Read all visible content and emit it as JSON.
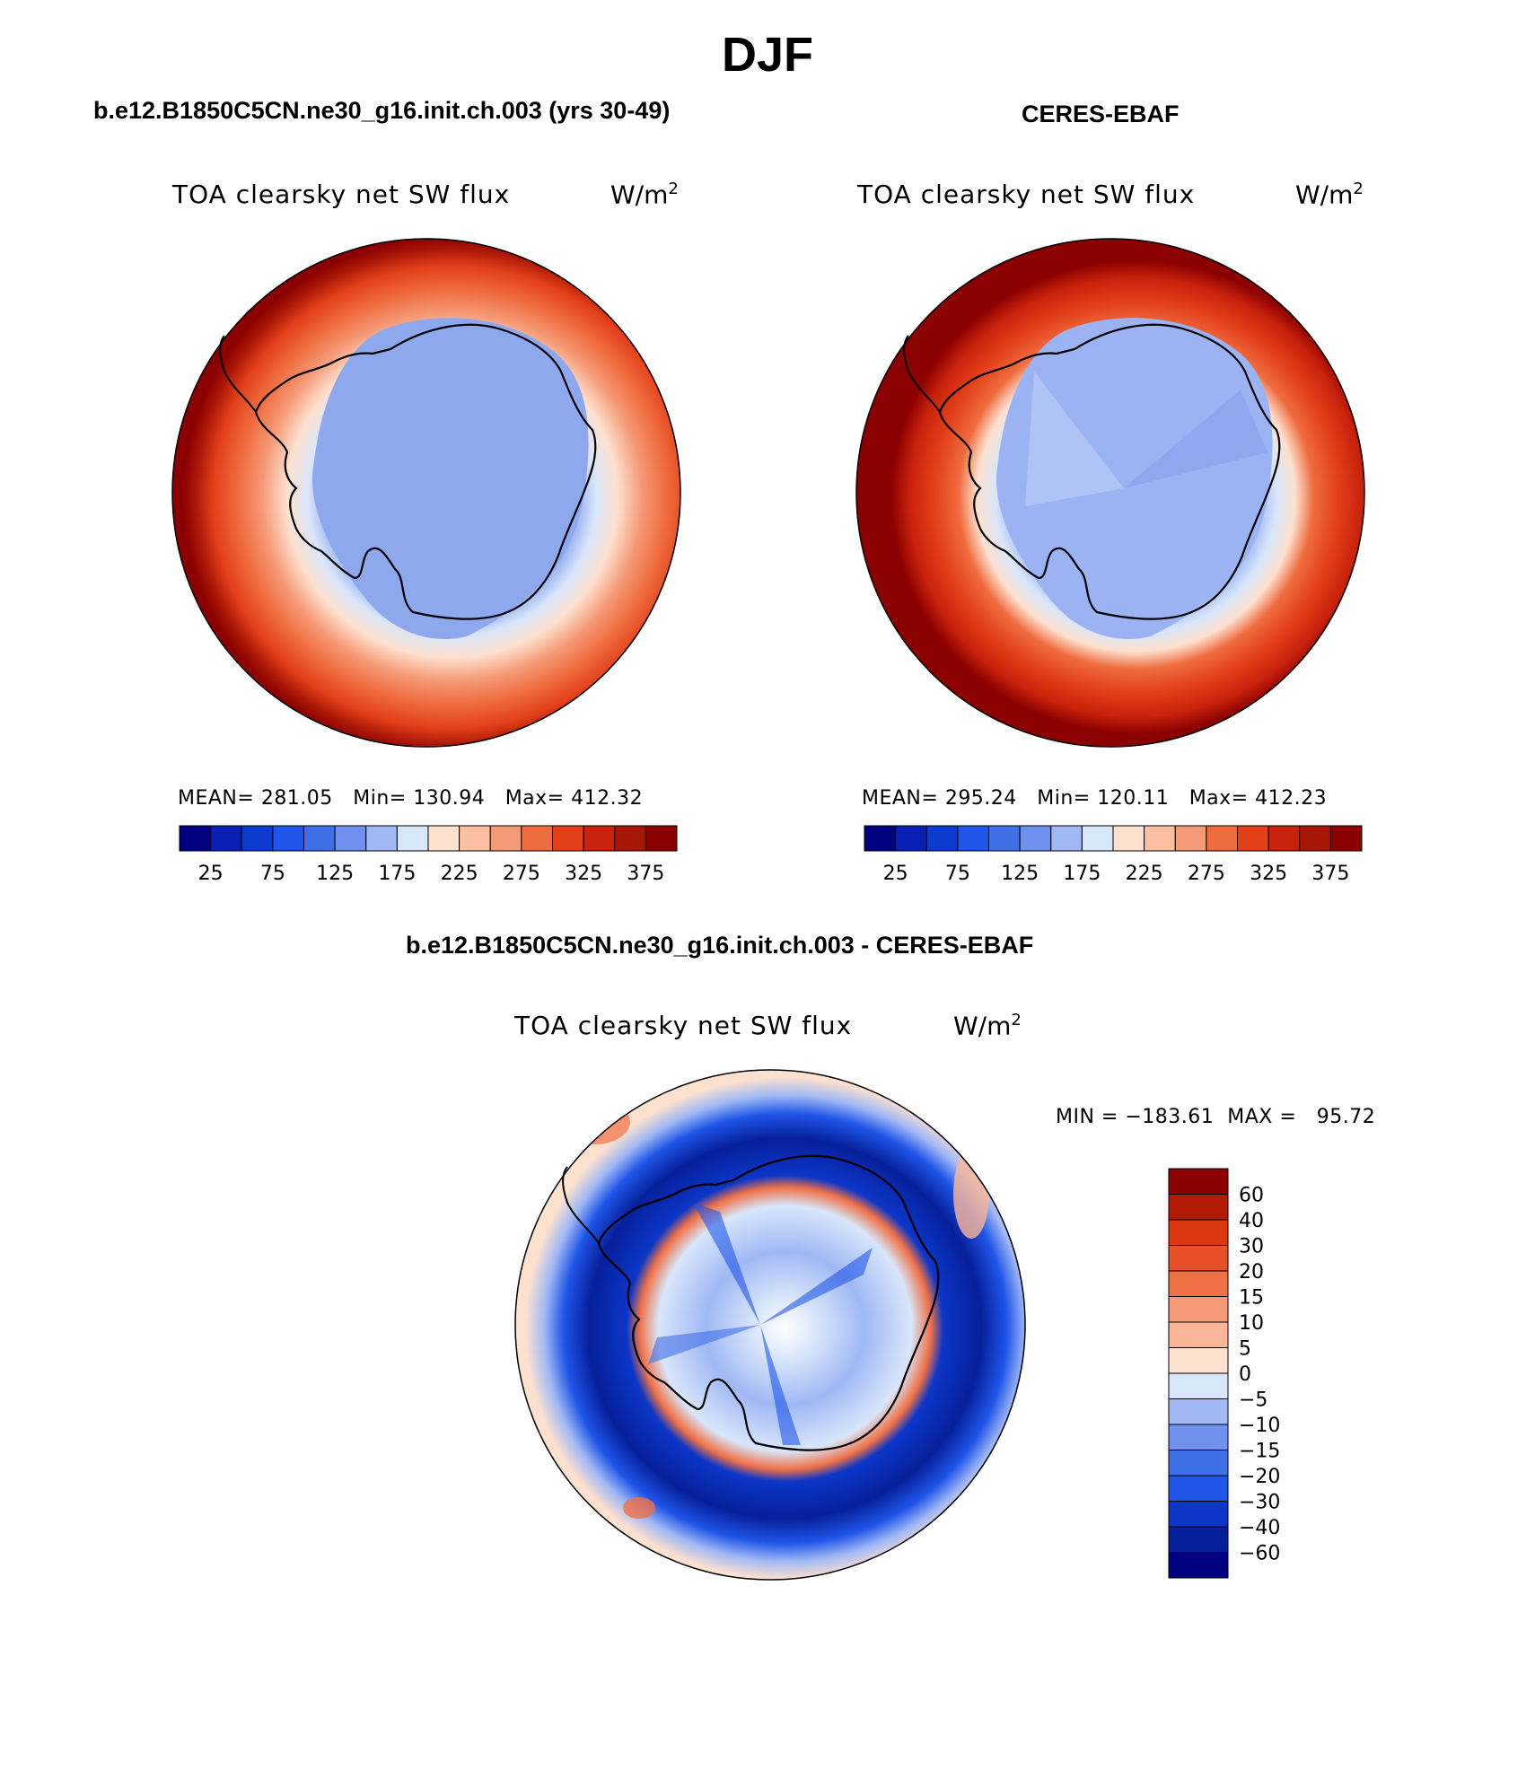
{
  "season": "DJF",
  "panels": [
    {
      "case": "b.e12.B1850C5CN.ne30_g16.init.ch.003 (yrs 30-49)",
      "variable": "TOA clearsky net SW flux",
      "units_base": "W/m",
      "units_exp": "2",
      "stats": "MEAN= 281.05   Min= 130.94   Max= 412.32"
    },
    {
      "case": "CERES-EBAF",
      "variable": "TOA clearsky net SW flux",
      "units_base": "W/m",
      "units_exp": "2",
      "stats": "MEAN= 295.24   Min= 120.11   Max= 412.23"
    }
  ],
  "difference": {
    "case": "b.e12.B1850C5CN.ne30_g16.init.ch.003 - CERES-EBAF",
    "variable": "TOA clearsky net SW flux",
    "units_base": "W/m",
    "units_exp": "2",
    "stats": "MIN = −183.61  MAX =   95.72"
  },
  "abs_colorbar": {
    "colors": [
      "#000080",
      "#0a1fb4",
      "#0d3acf",
      "#1f55e8",
      "#3f6fe6",
      "#6e90ef",
      "#a0b8f4",
      "#d8e6fa",
      "#fde1cf",
      "#fbc0a2",
      "#f59a76",
      "#ef6c3f",
      "#e3401a",
      "#c8220c",
      "#a81606",
      "#8b0000"
    ],
    "labels": [
      "25",
      "75",
      "125",
      "175",
      "225",
      "275",
      "325",
      "375"
    ]
  },
  "diff_colorbar": {
    "colors": [
      "#000080",
      "#06209b",
      "#0c36c8",
      "#1f55e8",
      "#3f6fe6",
      "#6e90ef",
      "#a0b8f4",
      "#d8e6fa",
      "#fde1cf",
      "#fbb699",
      "#f59a76",
      "#ef7146",
      "#e8502a",
      "#db3812",
      "#b21a06",
      "#8b0000"
    ],
    "labels": [
      "60",
      "40",
      "30",
      "20",
      "15",
      "10",
      "5",
      "0",
      "−5",
      "−10",
      "−15",
      "−20",
      "−30",
      "−40",
      "−60"
    ]
  }
}
